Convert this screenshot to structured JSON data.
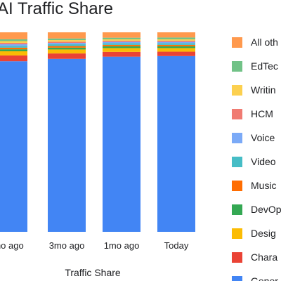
{
  "chart_data": {
    "type": "bar",
    "stacked": true,
    "title": "AI Traffic Share",
    "xlabel": "Traffic Share",
    "ylabel": "",
    "ylim": [
      0,
      100
    ],
    "grid": false,
    "legend_position": "right",
    "categories": [
      "mo ago",
      "3mo ago",
      "1mo ago",
      "Today"
    ],
    "series": [
      {
        "name": "Gener",
        "color": "#4285F4",
        "values": [
          85.5,
          86.7,
          87.8,
          88.1
        ]
      },
      {
        "name": "Chara",
        "color": "#EA4335",
        "values": [
          2.9,
          2.7,
          2.4,
          2.2
        ]
      },
      {
        "name": "Desig",
        "color": "#FBBC04",
        "values": [
          2.1,
          2.0,
          1.9,
          1.8
        ]
      },
      {
        "name": "DevOp",
        "color": "#34A853",
        "values": [
          1.0,
          0.9,
          0.9,
          0.9
        ]
      },
      {
        "name": "Music",
        "color": "#FF6D01",
        "values": [
          0.8,
          0.8,
          0.7,
          0.7
        ]
      },
      {
        "name": "Video",
        "color": "#46BDC6",
        "values": [
          0.9,
          0.9,
          0.8,
          0.8
        ]
      },
      {
        "name": "Voice",
        "color": "#7BAAF7",
        "values": [
          0.8,
          0.7,
          0.7,
          0.7
        ]
      },
      {
        "name": "HCM",
        "color": "#F07B72",
        "values": [
          0.7,
          0.6,
          0.6,
          0.6
        ]
      },
      {
        "name": "Writin",
        "color": "#FCD04F",
        "values": [
          0.9,
          0.8,
          0.7,
          0.7
        ]
      },
      {
        "name": "EdTec",
        "color": "#71C287",
        "values": [
          0.9,
          0.8,
          0.8,
          0.9
        ]
      },
      {
        "name": "All oth",
        "color": "#FF994D",
        "values": [
          3.5,
          3.1,
          2.7,
          2.6
        ]
      }
    ]
  }
}
